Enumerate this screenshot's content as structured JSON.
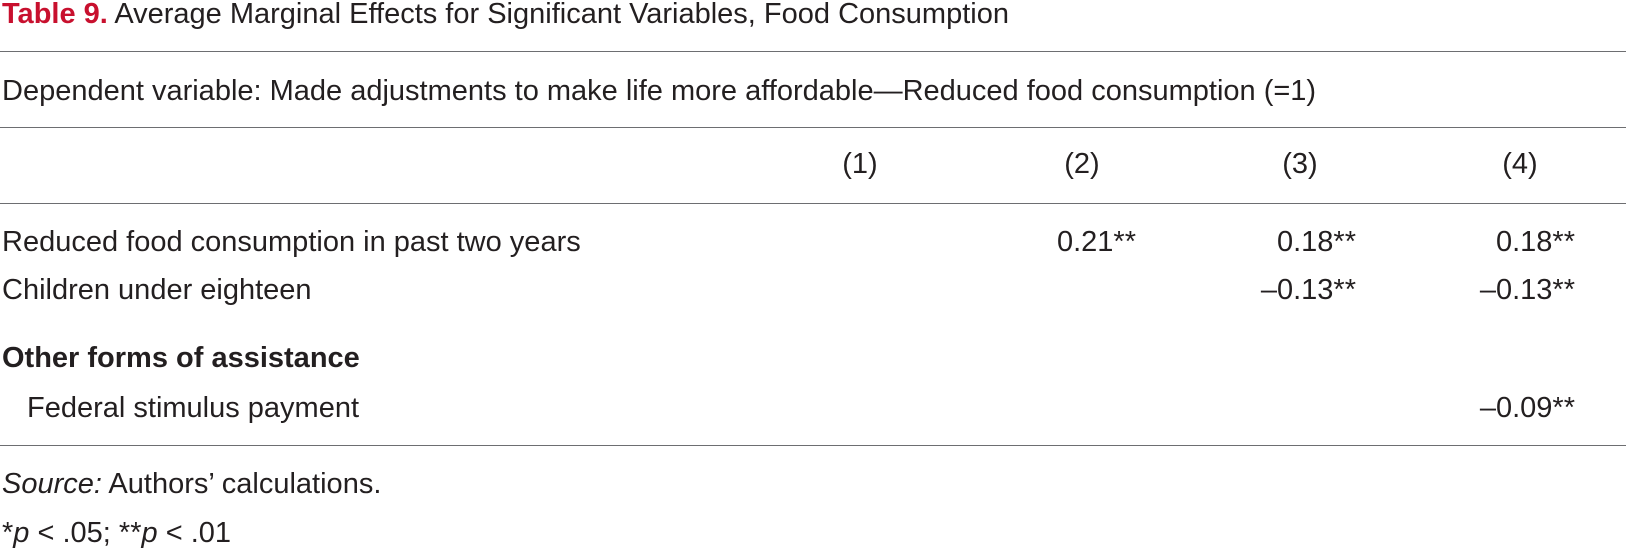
{
  "title": {
    "label": "Table 9.",
    "text": "Average Marginal Effects for Significant Variables, Food Consumption"
  },
  "dependent": "Dependent variable: Made adjustments to make life more affordable—Reduced food consumption (=1)",
  "table": {
    "columns": [
      "(1)",
      "(2)",
      "(3)",
      "(4)"
    ],
    "rows": [
      {
        "label": "Reduced food consumption in past two years",
        "cells": [
          null,
          "0.21**",
          "0.18**",
          "0.18**"
        ]
      },
      {
        "label": "Children under eighteen",
        "cells": [
          null,
          null,
          "–0.13**",
          "–0.13**"
        ]
      }
    ],
    "groups": [
      {
        "title": "Other forms of assistance",
        "rows": [
          {
            "label": "Federal stimulus payment",
            "cells": [
              null,
              null,
              null,
              "–0.09**"
            ]
          }
        ]
      }
    ]
  },
  "source": {
    "label": "Source:",
    "text": "Authors’ calculations."
  },
  "significance": [
    "*",
    "p",
    " < .05; **",
    "p",
    " < .01"
  ]
}
